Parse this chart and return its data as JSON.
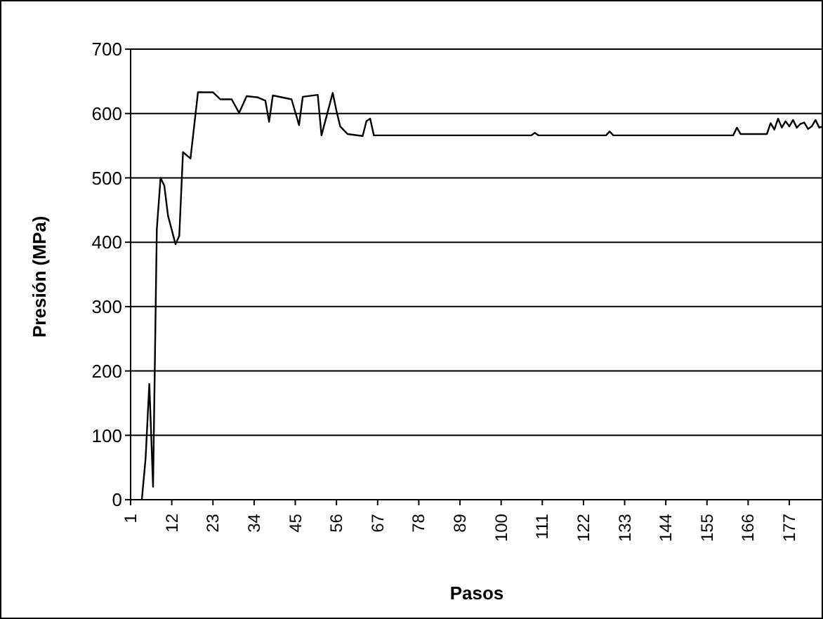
{
  "chart_data": {
    "type": "line",
    "xlabel": "Pasos",
    "ylabel": "Presión (MPa)",
    "x": [
      4,
      5,
      6,
      7,
      8,
      9,
      10,
      11,
      13,
      14,
      15,
      17,
      19,
      23,
      25,
      28,
      30,
      32,
      35,
      37,
      38,
      39,
      44,
      46,
      47,
      51,
      52,
      55,
      56,
      57,
      59,
      63,
      64,
      65,
      66,
      80,
      100,
      108,
      109,
      110,
      128,
      129,
      130,
      150,
      162,
      163,
      164,
      165,
      171,
      172,
      173,
      174,
      175,
      176,
      177,
      178,
      179,
      180,
      181,
      182,
      183,
      184,
      185,
      186
    ],
    "series": [
      {
        "color": "#000000",
        "values": [
          0,
          64,
          180,
          20,
          420,
          500,
          488,
          441,
          397,
          410,
          540,
          530,
          633,
          633,
          622,
          622,
          601,
          627,
          625,
          620,
          587,
          628,
          622,
          582,
          626,
          629,
          566,
          632,
          604,
          580,
          568,
          565,
          588,
          592,
          566,
          566,
          566,
          566,
          570,
          566,
          566,
          572,
          566,
          566,
          566,
          578,
          568,
          568,
          568,
          585,
          575,
          592,
          578,
          588,
          580,
          590,
          578,
          584,
          586,
          576,
          580,
          590,
          578,
          580
        ]
      }
    ],
    "xlim": [
      1,
      186
    ],
    "xticks": [
      1,
      12,
      23,
      34,
      45,
      56,
      67,
      78,
      89,
      100,
      111,
      122,
      133,
      144,
      155,
      166,
      177
    ],
    "ylim": [
      0,
      700
    ],
    "yticks": [
      0,
      100,
      200,
      300,
      400,
      500,
      600,
      700
    ],
    "grid": "y",
    "legend": false,
    "marker": "none",
    "line_style": "solid"
  }
}
